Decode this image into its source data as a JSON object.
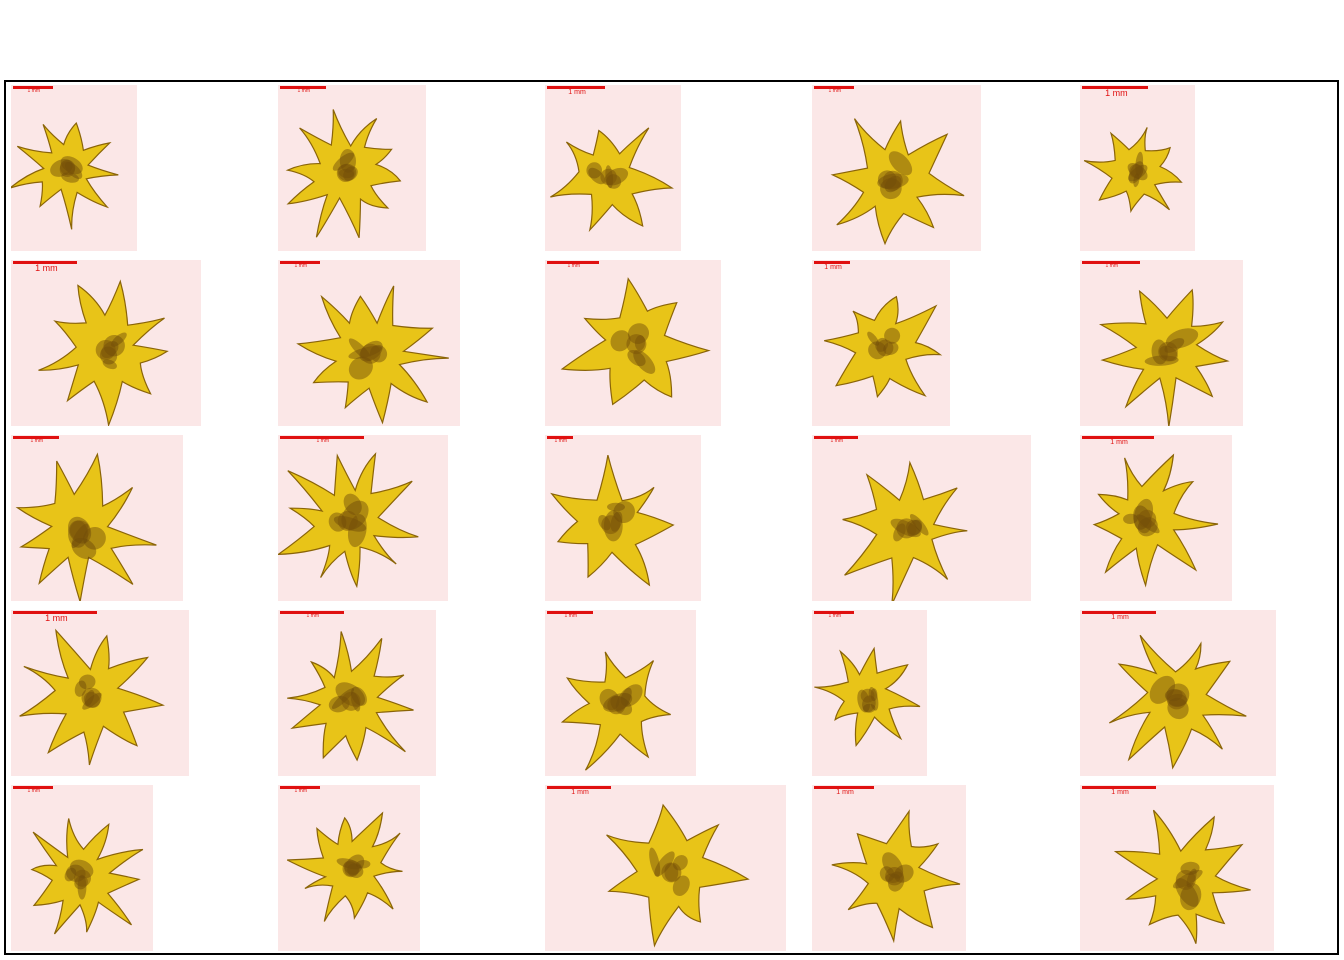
{
  "scale_label": "1 mm",
  "colors": {
    "background": "#fbe7e7",
    "scale_bar": "#e01010",
    "specimen_light": "#e8c418",
    "specimen_dark": "#5a3d08"
  },
  "specimens": [
    {
      "id": "specimen-r1c1"
    },
    {
      "id": "specimen-r1c2"
    },
    {
      "id": "specimen-r1c3"
    },
    {
      "id": "specimen-r1c4"
    },
    {
      "id": "specimen-r1c5"
    },
    {
      "id": "specimen-r2c1"
    },
    {
      "id": "specimen-r2c2"
    },
    {
      "id": "specimen-r2c3"
    },
    {
      "id": "specimen-r2c4"
    },
    {
      "id": "specimen-r2c5"
    },
    {
      "id": "specimen-r3c1"
    },
    {
      "id": "specimen-r3c2"
    },
    {
      "id": "specimen-r3c3"
    },
    {
      "id": "specimen-r3c4"
    },
    {
      "id": "specimen-r3c5"
    },
    {
      "id": "specimen-r4c1"
    },
    {
      "id": "specimen-r4c2"
    },
    {
      "id": "specimen-r4c3"
    },
    {
      "id": "specimen-r4c4"
    },
    {
      "id": "specimen-r4c5"
    },
    {
      "id": "specimen-r5c1"
    },
    {
      "id": "specimen-r5c2"
    },
    {
      "id": "specimen-r5c3"
    },
    {
      "id": "specimen-r5c4"
    },
    {
      "id": "specimen-r5c5"
    }
  ]
}
